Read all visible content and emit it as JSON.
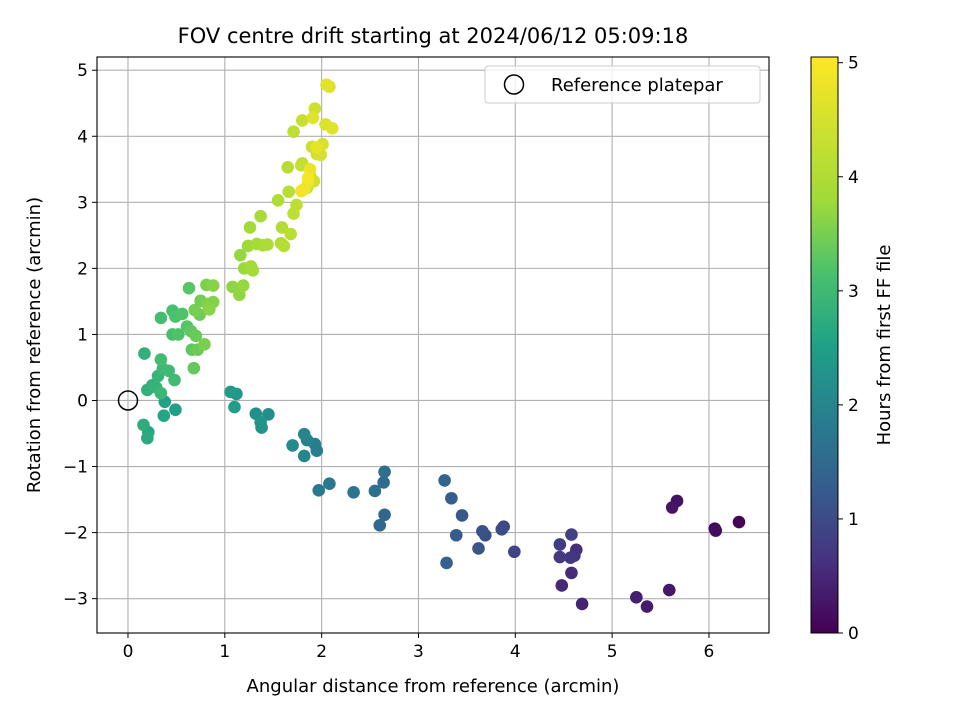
{
  "chart_data": {
    "type": "scatter",
    "title": "FOV centre drift starting at 2024/06/12 05:09:18",
    "xlabel": "Angular distance from reference (arcmin)",
    "ylabel": "Rotation from reference (arcmin)",
    "xlim": [
      -0.32,
      6.62
    ],
    "ylim": [
      -3.52,
      5.2
    ],
    "xticks": [
      "0",
      "1",
      "2",
      "3",
      "4",
      "5",
      "6"
    ],
    "yticks": [
      "−3",
      "−2",
      "−1",
      "0",
      "1",
      "2",
      "3",
      "4",
      "5"
    ],
    "grid": true,
    "legend": {
      "position": "top-right",
      "entries": [
        {
          "label": "Reference platepar",
          "marker": "open-circle"
        }
      ]
    },
    "colorbar": {
      "label": "Hours from first FF file",
      "colormap": "viridis",
      "range": [
        0,
        5.05
      ],
      "ticks": [
        "0",
        "1",
        "2",
        "3",
        "4",
        "5"
      ]
    },
    "reference_point": {
      "x": 0,
      "y": 0
    },
    "points": [
      [
        6.31,
        -1.84,
        0.05
      ],
      [
        6.06,
        -1.94,
        0.1
      ],
      [
        6.07,
        -1.97,
        0.15
      ],
      [
        5.67,
        -1.52,
        0.2
      ],
      [
        5.62,
        -1.62,
        0.25
      ],
      [
        5.59,
        -2.87,
        0.3
      ],
      [
        5.36,
        -3.12,
        0.35
      ],
      [
        5.25,
        -2.98,
        0.4
      ],
      [
        4.69,
        -3.08,
        0.45
      ],
      [
        4.48,
        -2.8,
        0.5
      ],
      [
        4.58,
        -2.61,
        0.55
      ],
      [
        4.63,
        -2.26,
        0.6
      ],
      [
        4.61,
        -2.35,
        0.65
      ],
      [
        4.57,
        -2.38,
        0.7
      ],
      [
        4.46,
        -2.37,
        0.75
      ],
      [
        4.46,
        -2.18,
        0.8
      ],
      [
        4.58,
        -2.03,
        0.85
      ],
      [
        3.99,
        -2.29,
        0.9
      ],
      [
        3.88,
        -1.91,
        0.95
      ],
      [
        3.86,
        -1.95,
        1.0
      ],
      [
        3.69,
        -2.04,
        1.05
      ],
      [
        3.66,
        -1.98,
        1.1
      ],
      [
        3.62,
        -2.24,
        1.15
      ],
      [
        3.45,
        -1.74,
        1.2
      ],
      [
        3.39,
        -2.04,
        1.25
      ],
      [
        3.34,
        -1.48,
        1.3
      ],
      [
        3.29,
        -2.46,
        1.35
      ],
      [
        3.27,
        -1.21,
        1.4
      ],
      [
        2.65,
        -1.73,
        1.45
      ],
      [
        2.6,
        -1.89,
        1.5
      ],
      [
        2.64,
        -1.24,
        1.55
      ],
      [
        2.65,
        -1.08,
        1.6
      ],
      [
        2.55,
        -1.37,
        1.65
      ],
      [
        2.33,
        -1.39,
        1.7
      ],
      [
        2.08,
        -1.26,
        1.75
      ],
      [
        1.97,
        -1.36,
        1.8
      ],
      [
        1.95,
        -0.76,
        1.85
      ],
      [
        1.93,
        -0.66,
        1.9
      ],
      [
        1.85,
        -0.6,
        1.95
      ],
      [
        1.82,
        -0.51,
        2.0
      ],
      [
        1.82,
        -0.84,
        2.05
      ],
      [
        1.7,
        -0.68,
        2.1
      ],
      [
        1.45,
        -0.21,
        2.15
      ],
      [
        1.32,
        -0.2,
        2.2
      ],
      [
        1.38,
        -0.41,
        2.25
      ],
      [
        1.37,
        -0.33,
        2.3
      ],
      [
        1.12,
        0.1,
        2.35
      ],
      [
        1.06,
        0.13,
        2.4
      ],
      [
        1.1,
        -0.1,
        2.45
      ],
      [
        0.49,
        -0.14,
        2.5
      ],
      [
        0.38,
        -0.02,
        2.55
      ],
      [
        0.37,
        -0.23,
        2.6
      ],
      [
        0.21,
        -0.48,
        2.65
      ],
      [
        0.2,
        -0.57,
        2.7
      ],
      [
        0.16,
        -0.37,
        2.75
      ],
      [
        0.17,
        0.71,
        2.8
      ],
      [
        0.2,
        0.16,
        2.82
      ],
      [
        0.25,
        0.23,
        2.85
      ],
      [
        0.29,
        0.2,
        2.88
      ],
      [
        0.31,
        0.37,
        2.9
      ],
      [
        0.34,
        0.11,
        2.93
      ],
      [
        0.36,
        0.48,
        2.96
      ],
      [
        0.42,
        0.45,
        3.0
      ],
      [
        0.48,
        0.31,
        3.02
      ],
      [
        0.34,
        0.62,
        3.05
      ],
      [
        0.34,
        1.25,
        3.08
      ],
      [
        0.46,
        1.0,
        3.1
      ],
      [
        0.46,
        1.36,
        3.12
      ],
      [
        0.49,
        1.27,
        3.15
      ],
      [
        0.52,
        1.0,
        3.18
      ],
      [
        0.56,
        1.31,
        3.2
      ],
      [
        0.61,
        1.12,
        3.23
      ],
      [
        0.63,
        1.7,
        3.26
      ],
      [
        0.65,
        1.05,
        3.3
      ],
      [
        0.66,
        0.77,
        3.32
      ],
      [
        0.68,
        0.49,
        3.35
      ],
      [
        0.7,
        0.98,
        3.38
      ],
      [
        0.72,
        0.77,
        3.4
      ],
      [
        0.74,
        1.3,
        3.43
      ],
      [
        0.75,
        1.51,
        3.46
      ],
      [
        0.69,
        1.37,
        3.48
      ],
      [
        0.79,
        0.85,
        3.5
      ],
      [
        0.81,
        1.75,
        3.53
      ],
      [
        0.82,
        1.46,
        3.56
      ],
      [
        0.88,
        1.49,
        3.58
      ],
      [
        0.88,
        1.74,
        3.6
      ],
      [
        0.84,
        1.38,
        3.62
      ],
      [
        1.08,
        1.72,
        3.65
      ],
      [
        1.15,
        1.6,
        3.68
      ],
      [
        1.16,
        2.2,
        3.7
      ],
      [
        1.19,
        1.74,
        3.72
      ],
      [
        1.2,
        2.0,
        3.75
      ],
      [
        1.24,
        2.34,
        3.78
      ],
      [
        1.26,
        2.62,
        3.8
      ],
      [
        1.27,
        2.03,
        3.82
      ],
      [
        1.29,
        1.97,
        3.85
      ],
      [
        1.33,
        2.37,
        3.88
      ],
      [
        1.37,
        2.79,
        3.9
      ],
      [
        1.39,
        2.35,
        3.93
      ],
      [
        1.44,
        2.36,
        3.96
      ],
      [
        1.55,
        3.03,
        4.0
      ],
      [
        1.58,
        2.38,
        4.02
      ],
      [
        1.59,
        2.62,
        4.05
      ],
      [
        1.61,
        2.34,
        4.08
      ],
      [
        1.65,
        3.53,
        4.1
      ],
      [
        1.66,
        3.16,
        4.12
      ],
      [
        1.68,
        2.52,
        4.15
      ],
      [
        1.71,
        2.83,
        4.18
      ],
      [
        1.71,
        4.07,
        4.2
      ],
      [
        1.74,
        2.96,
        4.22
      ],
      [
        1.79,
        3.56,
        4.25
      ],
      [
        1.8,
        3.59,
        4.28
      ],
      [
        1.8,
        4.24,
        4.3
      ],
      [
        1.85,
        3.22,
        4.32
      ],
      [
        1.88,
        3.4,
        4.35
      ],
      [
        1.9,
        3.84,
        4.38
      ],
      [
        1.92,
        3.32,
        4.4
      ],
      [
        1.93,
        4.42,
        4.43
      ],
      [
        1.95,
        3.73,
        4.46
      ],
      [
        1.99,
        3.72,
        4.5
      ],
      [
        2.01,
        3.88,
        4.53
      ],
      [
        2.04,
        4.18,
        4.56
      ],
      [
        2.08,
        4.75,
        4.6
      ],
      [
        2.11,
        4.12,
        4.63
      ],
      [
        1.91,
        4.28,
        4.66
      ],
      [
        2.05,
        4.78,
        4.7
      ],
      [
        1.95,
        3.83,
        4.73
      ],
      [
        1.86,
        3.3,
        4.76
      ],
      [
        1.88,
        3.5,
        4.8
      ],
      [
        1.82,
        3.2,
        4.85
      ],
      [
        1.79,
        3.17,
        4.9
      ],
      [
        1.86,
        3.37,
        4.95
      ]
    ]
  }
}
